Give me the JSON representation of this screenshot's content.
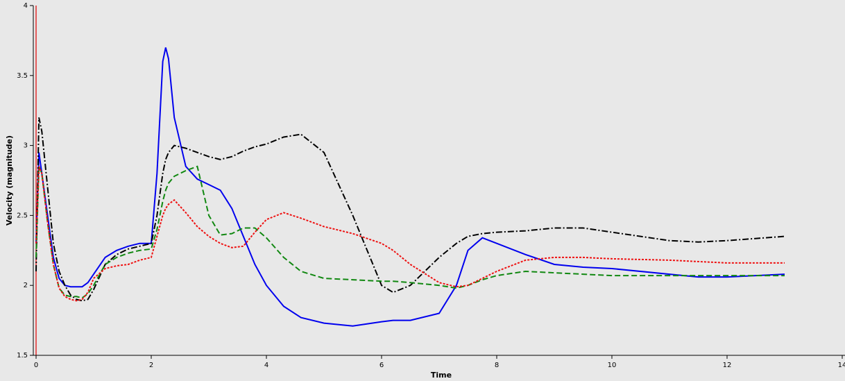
{
  "chart_data": {
    "type": "line",
    "xlabel": "Time",
    "ylabel": "Velocity (magnitude)",
    "x": [
      0,
      0.05,
      0.1,
      0.2,
      0.3,
      0.4,
      0.5,
      0.6,
      0.7,
      0.8,
      0.9,
      1.0,
      1.2,
      1.4,
      1.6,
      1.8,
      2.0,
      2.1,
      2.2,
      2.25,
      2.3,
      2.4,
      2.6,
      2.8,
      3.0,
      3.2,
      3.4,
      3.6,
      3.8,
      4.0,
      4.3,
      4.6,
      5.0,
      5.5,
      6.0,
      6.2,
      6.5,
      7.0,
      7.3,
      7.5,
      7.75,
      8.0,
      8.5,
      9.0,
      9.5,
      10,
      11,
      11.5,
      12,
      13
    ],
    "series": [
      {
        "color": "#0000ee",
        "style": "solid",
        "values": [
          2.3,
          2.95,
          2.8,
          2.5,
          2.2,
          2.05,
          2.0,
          1.99,
          1.99,
          1.99,
          2.02,
          2.08,
          2.2,
          2.25,
          2.28,
          2.3,
          2.3,
          2.8,
          3.6,
          3.7,
          3.62,
          3.2,
          2.85,
          2.76,
          2.72,
          2.68,
          2.55,
          2.35,
          2.15,
          2.0,
          1.85,
          1.77,
          1.73,
          1.71,
          1.74,
          1.75,
          1.75,
          1.8,
          2.0,
          2.25,
          2.34,
          2.3,
          2.22,
          2.15,
          2.13,
          2.12,
          2.08,
          2.06,
          2.06,
          2.08
        ]
      },
      {
        "color": "#000000",
        "style": "dashdot",
        "values": [
          2.1,
          3.2,
          3.1,
          2.7,
          2.3,
          2.1,
          2.0,
          1.93,
          1.9,
          1.89,
          1.9,
          1.97,
          2.15,
          2.22,
          2.26,
          2.28,
          2.3,
          2.5,
          2.8,
          2.9,
          2.95,
          3.0,
          2.98,
          2.95,
          2.92,
          2.9,
          2.92,
          2.96,
          2.99,
          3.01,
          3.06,
          3.08,
          2.95,
          2.5,
          2.0,
          1.95,
          2.0,
          2.2,
          2.3,
          2.35,
          2.37,
          2.38,
          2.39,
          2.41,
          2.41,
          2.38,
          2.32,
          2.31,
          2.32,
          2.35
        ]
      },
      {
        "color": "#118811",
        "style": "dashed",
        "values": [
          2.2,
          2.85,
          2.8,
          2.45,
          2.15,
          1.98,
          1.93,
          1.92,
          1.92,
          1.91,
          1.94,
          2.0,
          2.15,
          2.2,
          2.23,
          2.25,
          2.26,
          2.4,
          2.6,
          2.68,
          2.73,
          2.78,
          2.82,
          2.85,
          2.5,
          2.36,
          2.37,
          2.41,
          2.41,
          2.34,
          2.2,
          2.1,
          2.05,
          2.04,
          2.03,
          2.03,
          2.02,
          2.0,
          1.98,
          2.0,
          2.04,
          2.07,
          2.1,
          2.09,
          2.08,
          2.07,
          2.07,
          2.07,
          2.07,
          2.07
        ]
      },
      {
        "color": "#ee1111",
        "style": "dotted",
        "values": [
          2.3,
          2.85,
          2.8,
          2.45,
          2.15,
          1.98,
          1.92,
          1.9,
          1.89,
          1.9,
          1.95,
          2.05,
          2.12,
          2.14,
          2.15,
          2.18,
          2.2,
          2.35,
          2.5,
          2.55,
          2.58,
          2.61,
          2.52,
          2.42,
          2.35,
          2.3,
          2.27,
          2.28,
          2.38,
          2.47,
          2.52,
          2.48,
          2.42,
          2.37,
          2.3,
          2.25,
          2.15,
          2.02,
          1.99,
          2.0,
          2.05,
          2.1,
          2.18,
          2.2,
          2.2,
          2.19,
          2.18,
          2.17,
          2.16,
          2.16
        ]
      }
    ],
    "xlim": [
      0,
      14
    ],
    "xticks": [
      0,
      2,
      4,
      6,
      8,
      10,
      12,
      14
    ],
    "ylim": [
      1.5,
      4
    ],
    "yticks": [
      1.5,
      2,
      2.5,
      3,
      3.5,
      4
    ]
  }
}
